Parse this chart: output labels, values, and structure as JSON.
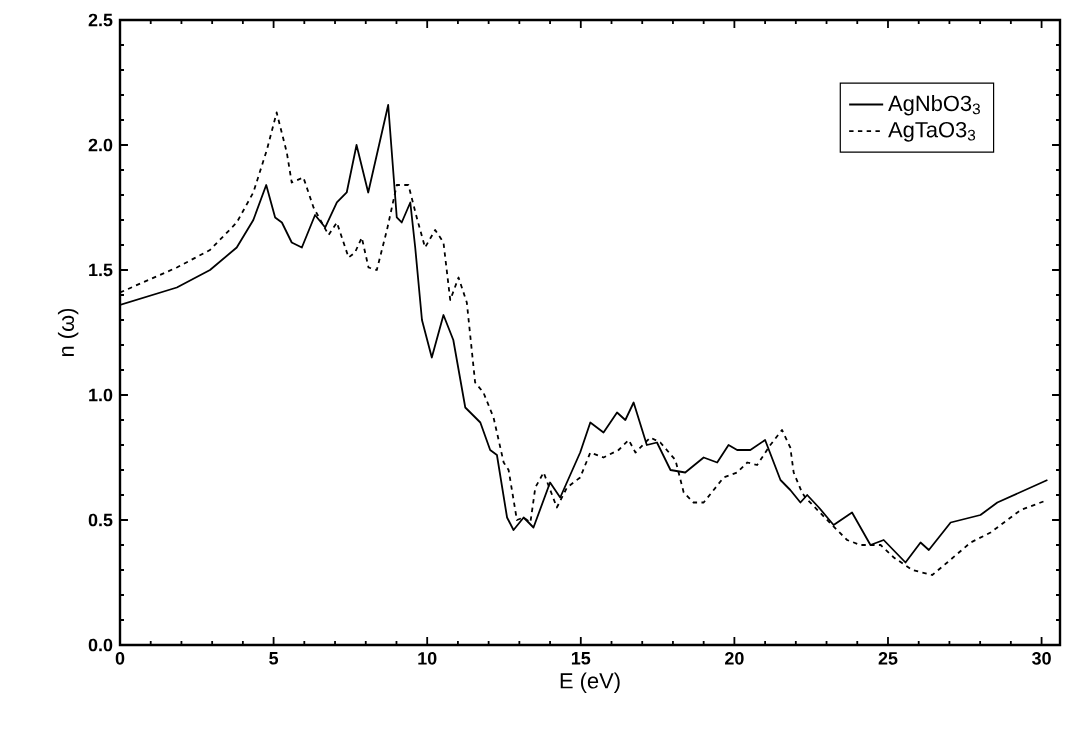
{
  "chart_data": {
    "type": "line",
    "xlabel": "E (eV)",
    "ylabel": "n (ω)",
    "xlim": [
      0,
      30.6
    ],
    "ylim": [
      0,
      2.5
    ],
    "xticks": [
      0,
      5,
      10,
      15,
      20,
      25,
      30
    ],
    "yticks": [
      {
        "value": 0,
        "label": "0.0"
      },
      {
        "value": 0.5,
        "label": "0.5"
      },
      {
        "value": 1,
        "label": "1.0"
      },
      {
        "value": 1.5,
        "label": "1.5"
      },
      {
        "value": 2,
        "label": "2.0"
      },
      {
        "value": 2.5,
        "label": "2.5"
      }
    ],
    "grid": false,
    "legend": "top right",
    "marker": "none",
    "series": [
      {
        "name": "AgNbO3$_{3}$",
        "color": "#000000",
        "line_style": "solid",
        "x": [
          0,
          1.85,
          2.93,
          3.8,
          4.34,
          4.76,
          5.05,
          5.27,
          5.59,
          5.92,
          6.35,
          6.68,
          7.06,
          7.38,
          7.7,
          8.08,
          8.73,
          9.01,
          9.17,
          9.45,
          9.61,
          9.83,
          10.15,
          10.53,
          10.85,
          11.24,
          11.73,
          12.05,
          12.27,
          12.6,
          12.81,
          13.14,
          13.46,
          14.0,
          14.33,
          14.98,
          15.31,
          15.74,
          16.18,
          16.45,
          16.72,
          17.15,
          17.48,
          17.92,
          18.4,
          19.0,
          19.44,
          19.81,
          20.09,
          20.52,
          21.0,
          21.5,
          21.82,
          22.15,
          22.37,
          22.75,
          23.23,
          23.83,
          24.43,
          24.86,
          25.57,
          26.06,
          26.33,
          27.04,
          28.01,
          28.56,
          30.19
        ],
        "values": [
          1.36,
          1.43,
          1.5,
          1.59,
          1.7,
          1.84,
          1.71,
          1.69,
          1.61,
          1.59,
          1.72,
          1.67,
          1.77,
          1.81,
          2.0,
          1.81,
          2.16,
          1.71,
          1.69,
          1.77,
          1.59,
          1.3,
          1.15,
          1.32,
          1.22,
          0.95,
          0.89,
          0.78,
          0.76,
          0.51,
          0.46,
          0.51,
          0.47,
          0.65,
          0.59,
          0.77,
          0.89,
          0.85,
          0.93,
          0.9,
          0.97,
          0.8,
          0.81,
          0.7,
          0.69,
          0.75,
          0.73,
          0.8,
          0.78,
          0.78,
          0.82,
          0.66,
          0.62,
          0.57,
          0.6,
          0.55,
          0.48,
          0.53,
          0.4,
          0.42,
          0.33,
          0.41,
          0.38,
          0.49,
          0.52,
          0.57,
          0.66
        ]
      },
      {
        "name": "AgTaO3$_{3}$",
        "color": "#000000",
        "line_style": "dashed",
        "x": [
          0,
          1.85,
          2.93,
          3.8,
          4.34,
          4.78,
          5.1,
          5.43,
          5.59,
          5.97,
          6.3,
          6.79,
          7.06,
          7.44,
          7.65,
          7.87,
          8.09,
          8.36,
          8.69,
          9.01,
          9.39,
          9.66,
          9.93,
          10.26,
          10.53,
          10.75,
          11.02,
          11.29,
          11.56,
          11.83,
          12.16,
          12.49,
          12.65,
          12.92,
          13.14,
          13.36,
          13.52,
          13.79,
          14.22,
          14.55,
          14.98,
          15.31,
          15.74,
          16.23,
          16.56,
          16.78,
          17.26,
          17.59,
          18.08,
          18.35,
          18.67,
          19.0,
          19.65,
          20.09,
          20.42,
          20.74,
          21.17,
          21.55,
          21.82,
          21.93,
          22.2,
          22.31,
          23.18,
          23.67,
          24.1,
          24.76,
          25.19,
          25.79,
          26.44,
          26.93,
          27.69,
          28.34,
          29.32,
          30.19
        ],
        "values": [
          1.41,
          1.51,
          1.58,
          1.69,
          1.81,
          1.98,
          2.13,
          1.97,
          1.85,
          1.87,
          1.75,
          1.64,
          1.69,
          1.55,
          1.57,
          1.63,
          1.51,
          1.5,
          1.66,
          1.84,
          1.84,
          1.71,
          1.59,
          1.66,
          1.61,
          1.38,
          1.47,
          1.37,
          1.05,
          1.01,
          0.91,
          0.73,
          0.7,
          0.5,
          0.51,
          0.49,
          0.63,
          0.69,
          0.55,
          0.63,
          0.67,
          0.77,
          0.75,
          0.78,
          0.82,
          0.77,
          0.83,
          0.81,
          0.74,
          0.61,
          0.57,
          0.57,
          0.67,
          0.69,
          0.73,
          0.72,
          0.8,
          0.86,
          0.79,
          0.69,
          0.61,
          0.59,
          0.48,
          0.42,
          0.4,
          0.4,
          0.35,
          0.3,
          0.28,
          0.33,
          0.41,
          0.45,
          0.54,
          0.58
        ]
      }
    ]
  }
}
